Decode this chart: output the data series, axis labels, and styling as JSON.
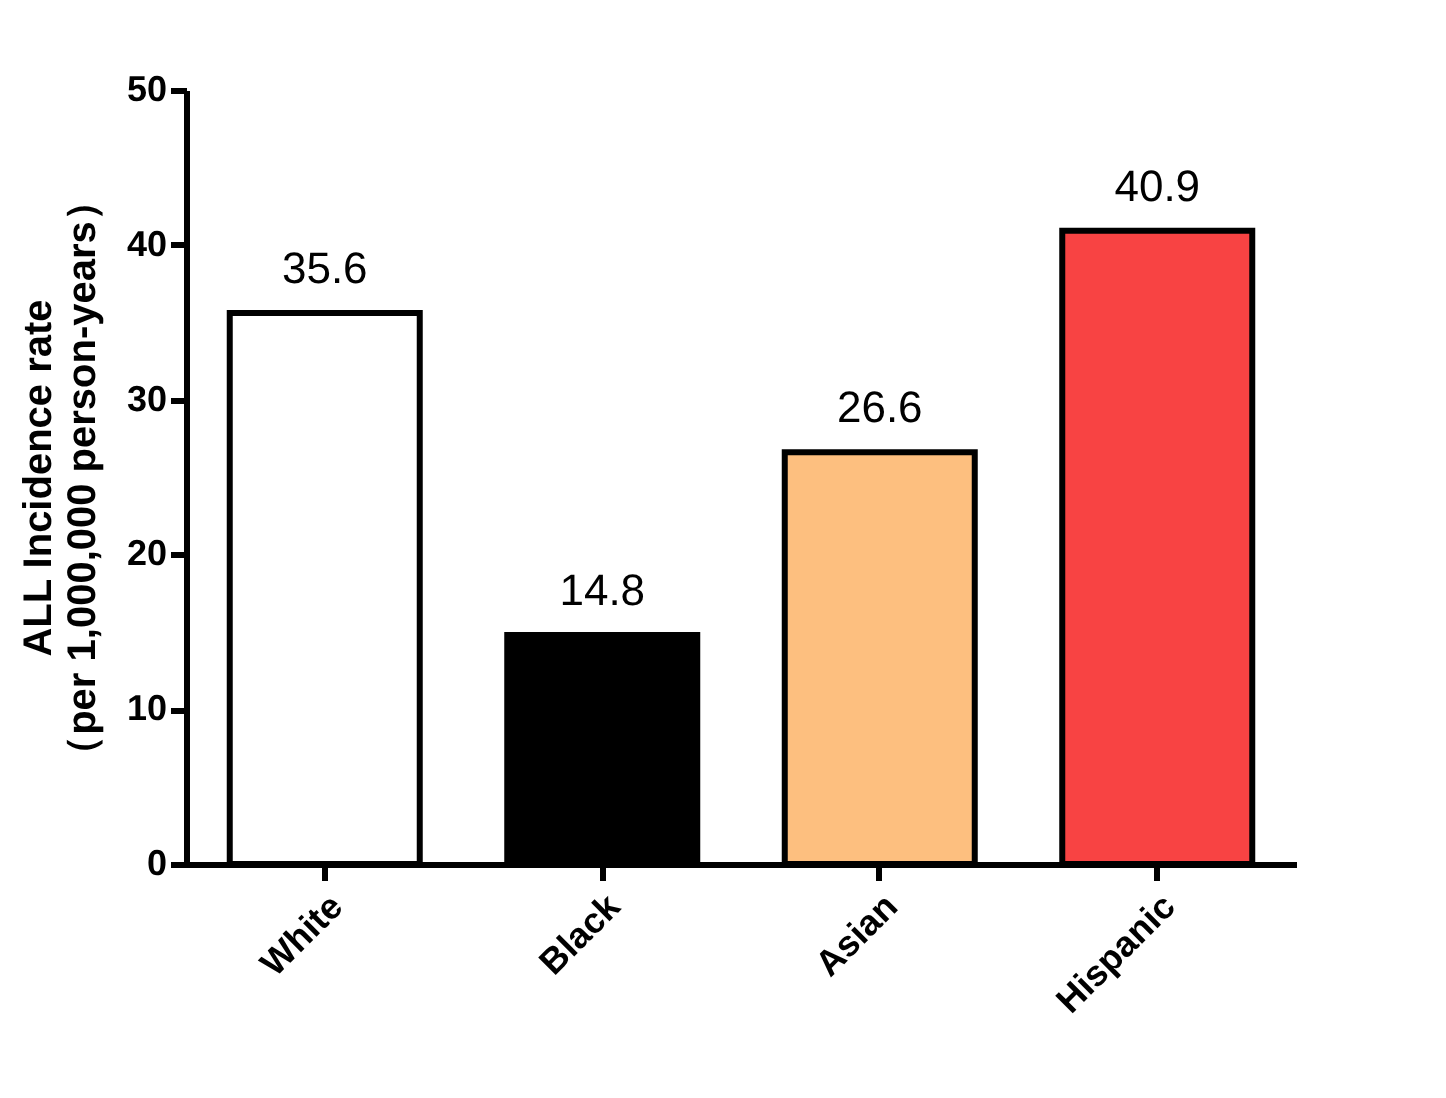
{
  "chart_data": {
    "type": "bar",
    "ylabel": "ALL Incidence rate\n（per 1,000,000 person-years）",
    "categories": [
      "White",
      "Black",
      "Asian",
      "Hispanic"
    ],
    "values": [
      35.6,
      14.8,
      26.6,
      40.9
    ],
    "colors": [
      "#ffffff",
      "#000000",
      "#fdbf7f",
      "#f84343"
    ],
    "ylim": [
      0,
      50
    ],
    "yticks": [
      0,
      10,
      20,
      30,
      40,
      50
    ],
    "grid": false,
    "data_labels": true
  }
}
